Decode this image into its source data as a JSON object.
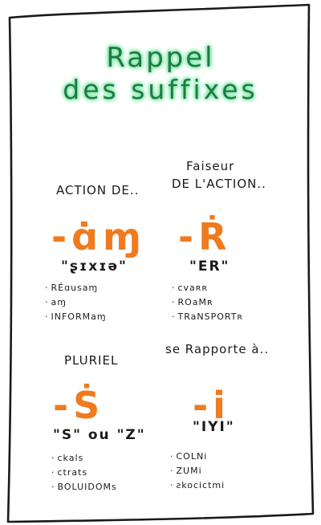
{
  "title": {
    "line1": "Rappel",
    "line2": "des suffixes"
  },
  "sections": [
    {
      "header": "ACTION DE..",
      "suffix": "-ɑ̇ɱ",
      "pronunciation": "\"ʂɪxɪə\"",
      "examples": [
        "RÉɑusaɱ",
        "aɱ",
        "INFORMaɱ"
      ]
    },
    {
      "header_line1": "Faiseur",
      "header_line2": "DE L'ACTION..",
      "suffix": "-Ṙ",
      "pronunciation": "\"ER\"",
      "examples": [
        "cvaʀʀ",
        "ROaMʀ",
        "TRaNSPORTʀ"
      ]
    },
    {
      "header": "PLURIEL",
      "suffix": "-Ṡ",
      "pronunciation": "\"S\" ou \"Z\"",
      "examples": [
        "ckals",
        "ctrats",
        "BOLUIDOMs"
      ]
    },
    {
      "header": "se Rapporte à..",
      "suffix": "-i",
      "pronunciation": "\"IYI\"",
      "examples": [
        "COLNi",
        "ZUMi",
        "ƨkocictmi"
      ]
    }
  ],
  "colors": {
    "title_text": "#1f7a43",
    "title_glow": "#7fe6a8",
    "suffix": "#f07a1e",
    "ink": "#1a1a1a"
  }
}
